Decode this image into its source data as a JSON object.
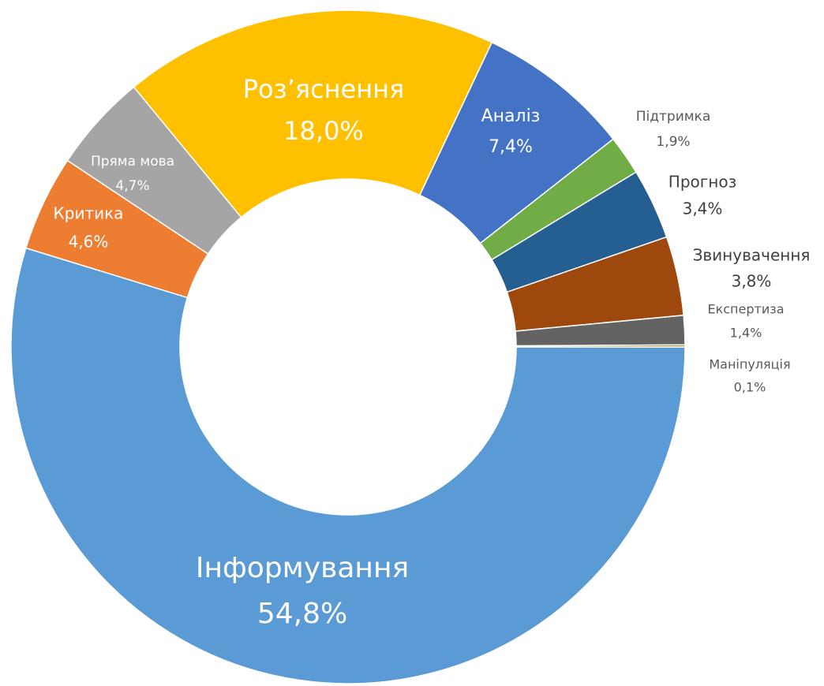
{
  "chart_data": {
    "type": "donut",
    "categories": [
      "Інформування",
      "Критика",
      "Пряма мова",
      "Роз’яснення",
      "Аналіз",
      "Підтримка",
      "Прогноз",
      "Звинувачення",
      "Експертиза",
      "Маніпуляція"
    ],
    "values": [
      54.8,
      4.6,
      4.7,
      18.0,
      7.4,
      1.9,
      3.4,
      3.8,
      1.4,
      0.1
    ],
    "value_labels": [
      "54,8%",
      "4,6%",
      "4,7%",
      "18,0%",
      "7,4%",
      "1,9%",
      "3,4%",
      "3,8%",
      "1,4%",
      "0,1%"
    ],
    "colors": [
      "#5b9bd5",
      "#ed7d31",
      "#a5a5a5",
      "#ffc000",
      "#4472c4",
      "#70ad47",
      "#255e91",
      "#9e480e",
      "#636363",
      "#997300"
    ]
  }
}
